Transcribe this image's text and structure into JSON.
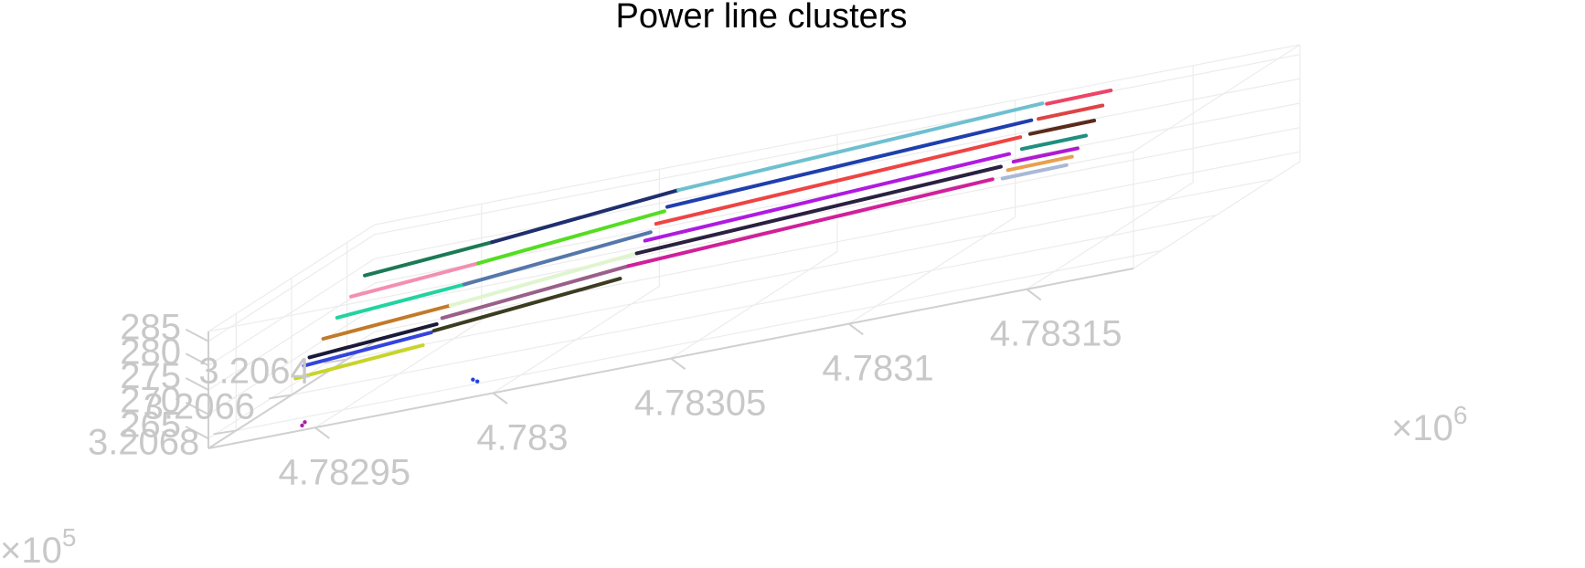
{
  "chart_data": {
    "type": "scatter3d",
    "title": "Power line clusters",
    "xlabel": "",
    "ylabel": "",
    "zlabel": "",
    "x_exponent_label": "×10",
    "x_exponent_power": "6",
    "y_exponent_label": "×10",
    "y_exponent_power": "5",
    "xlim": [
      4.78292,
      4.78318
    ],
    "ylim": [
      3.2063,
      3.2069
    ],
    "zlim": [
      263,
      287
    ],
    "x_ticks": [
      "4.78295",
      "4.783",
      "4.78305",
      "4.7831",
      "4.78315"
    ],
    "y_ticks": [
      "3.2064",
      "3.2066",
      "3.2068"
    ],
    "z_ticks": [
      "265",
      "270",
      "275",
      "280",
      "285"
    ],
    "grid": true,
    "legend": "none",
    "series": [
      {
        "color": "#1b7a55",
        "values": [
          [
            4.782925,
            3.2064,
            279.5
          ],
          [
            4.78296,
            3.20639,
            281.0
          ]
        ]
      },
      {
        "color": "#f48fb1",
        "values": [
          [
            4.782925,
            3.20645,
            277.0
          ],
          [
            4.78296,
            3.20644,
            278.5
          ]
        ]
      },
      {
        "color": "#22d3a0",
        "values": [
          [
            4.782925,
            3.2065,
            274.5
          ],
          [
            4.78296,
            3.20649,
            276.0
          ]
        ]
      },
      {
        "color": "#c27a2a",
        "values": [
          [
            4.782925,
            3.20655,
            272.0
          ],
          [
            4.78296,
            3.20654,
            273.5
          ]
        ]
      },
      {
        "color": "#1a1a3a",
        "values": [
          [
            4.782925,
            3.2066,
            270.0
          ],
          [
            4.78296,
            3.20659,
            271.5
          ]
        ]
      },
      {
        "color": "#3344dd",
        "values": [
          [
            4.782925,
            3.20662,
            269.0
          ],
          [
            4.78296,
            3.20661,
            270.5
          ]
        ]
      },
      {
        "color": "#c8d42a",
        "values": [
          [
            4.782925,
            3.20665,
            267.5
          ],
          [
            4.78296,
            3.20664,
            269.0
          ]
        ]
      },
      {
        "color": "#1f2f6e",
        "values": [
          [
            4.78296,
            3.20639,
            281.0
          ],
          [
            4.78301,
            3.20636,
            283.5
          ]
        ]
      },
      {
        "color": "#55dd22",
        "values": [
          [
            4.78296,
            3.20644,
            278.5
          ],
          [
            4.78301,
            3.20641,
            281.0
          ]
        ]
      },
      {
        "color": "#5577aa",
        "values": [
          [
            4.78296,
            3.20649,
            276.0
          ],
          [
            4.78301,
            3.20646,
            278.5
          ]
        ]
      },
      {
        "color": "#dff5cf",
        "values": [
          [
            4.78296,
            3.20654,
            273.5
          ],
          [
            4.78301,
            3.20651,
            276.0
          ]
        ]
      },
      {
        "color": "#9a5f8a",
        "values": [
          [
            4.78296,
            3.20657,
            272.0
          ],
          [
            4.78301,
            3.20654,
            274.5
          ]
        ]
      },
      {
        "color": "#3c3c20",
        "values": [
          [
            4.78296,
            3.2066,
            270.5
          ],
          [
            4.78301,
            3.20657,
            273.0
          ]
        ]
      },
      {
        "color": "#6ec0d0",
        "values": [
          [
            4.78301,
            3.20636,
            283.5
          ],
          [
            4.78311,
            3.20633,
            286.0
          ]
        ]
      },
      {
        "color": "#1f3fae",
        "values": [
          [
            4.78301,
            3.2064,
            281.5
          ],
          [
            4.78311,
            3.20637,
            284.0
          ]
        ]
      },
      {
        "color": "#ee4444",
        "values": [
          [
            4.78301,
            3.20644,
            279.5
          ],
          [
            4.78311,
            3.20641,
            282.0
          ]
        ]
      },
      {
        "color": "#b01ae0",
        "values": [
          [
            4.78301,
            3.20648,
            277.5
          ],
          [
            4.78311,
            3.20645,
            280.0
          ]
        ]
      },
      {
        "color": "#2a2040",
        "values": [
          [
            4.78301,
            3.20651,
            276.0
          ],
          [
            4.78311,
            3.20648,
            278.5
          ]
        ]
      },
      {
        "color": "#d0209a",
        "values": [
          [
            4.78301,
            3.20654,
            274.5
          ],
          [
            4.78311,
            3.20651,
            277.0
          ]
        ]
      },
      {
        "color": "#ee4466",
        "values": [
          [
            4.783112,
            3.20634,
            286.0
          ],
          [
            4.78313,
            3.20634,
            286.2
          ]
        ]
      },
      {
        "color": "#dd4444",
        "values": [
          [
            4.783112,
            3.20637,
            284.0
          ],
          [
            4.78313,
            3.20637,
            284.2
          ]
        ]
      },
      {
        "color": "#5a2a1a",
        "values": [
          [
            4.783112,
            3.2064,
            282.0
          ],
          [
            4.78313,
            3.2064,
            282.2
          ]
        ]
      },
      {
        "color": "#1f8f7f",
        "values": [
          [
            4.783112,
            3.20643,
            280.0
          ],
          [
            4.78313,
            3.20643,
            280.2
          ]
        ]
      },
      {
        "color": "#b01ad0",
        "values": [
          [
            4.783112,
            3.20646,
            278.5
          ],
          [
            4.78313,
            3.20646,
            278.7
          ]
        ]
      },
      {
        "color": "#e8a050",
        "values": [
          [
            4.783112,
            3.20648,
            277.5
          ],
          [
            4.78313,
            3.20648,
            277.7
          ]
        ]
      },
      {
        "color": "#aab8d8",
        "values": [
          [
            4.783112,
            3.2065,
            276.5
          ],
          [
            4.78313,
            3.2065,
            276.7
          ]
        ]
      },
      {
        "color": "#2244dd",
        "values": [
          [
            4.782985,
            3.20678,
            263.5
          ],
          [
            4.782987,
            3.20679,
            263.2
          ]
        ]
      },
      {
        "color": "#aa22aa",
        "values": [
          [
            4.782944,
            3.20686,
            263.5
          ],
          [
            4.782944,
            3.20687,
            263.2
          ]
        ]
      }
    ]
  }
}
